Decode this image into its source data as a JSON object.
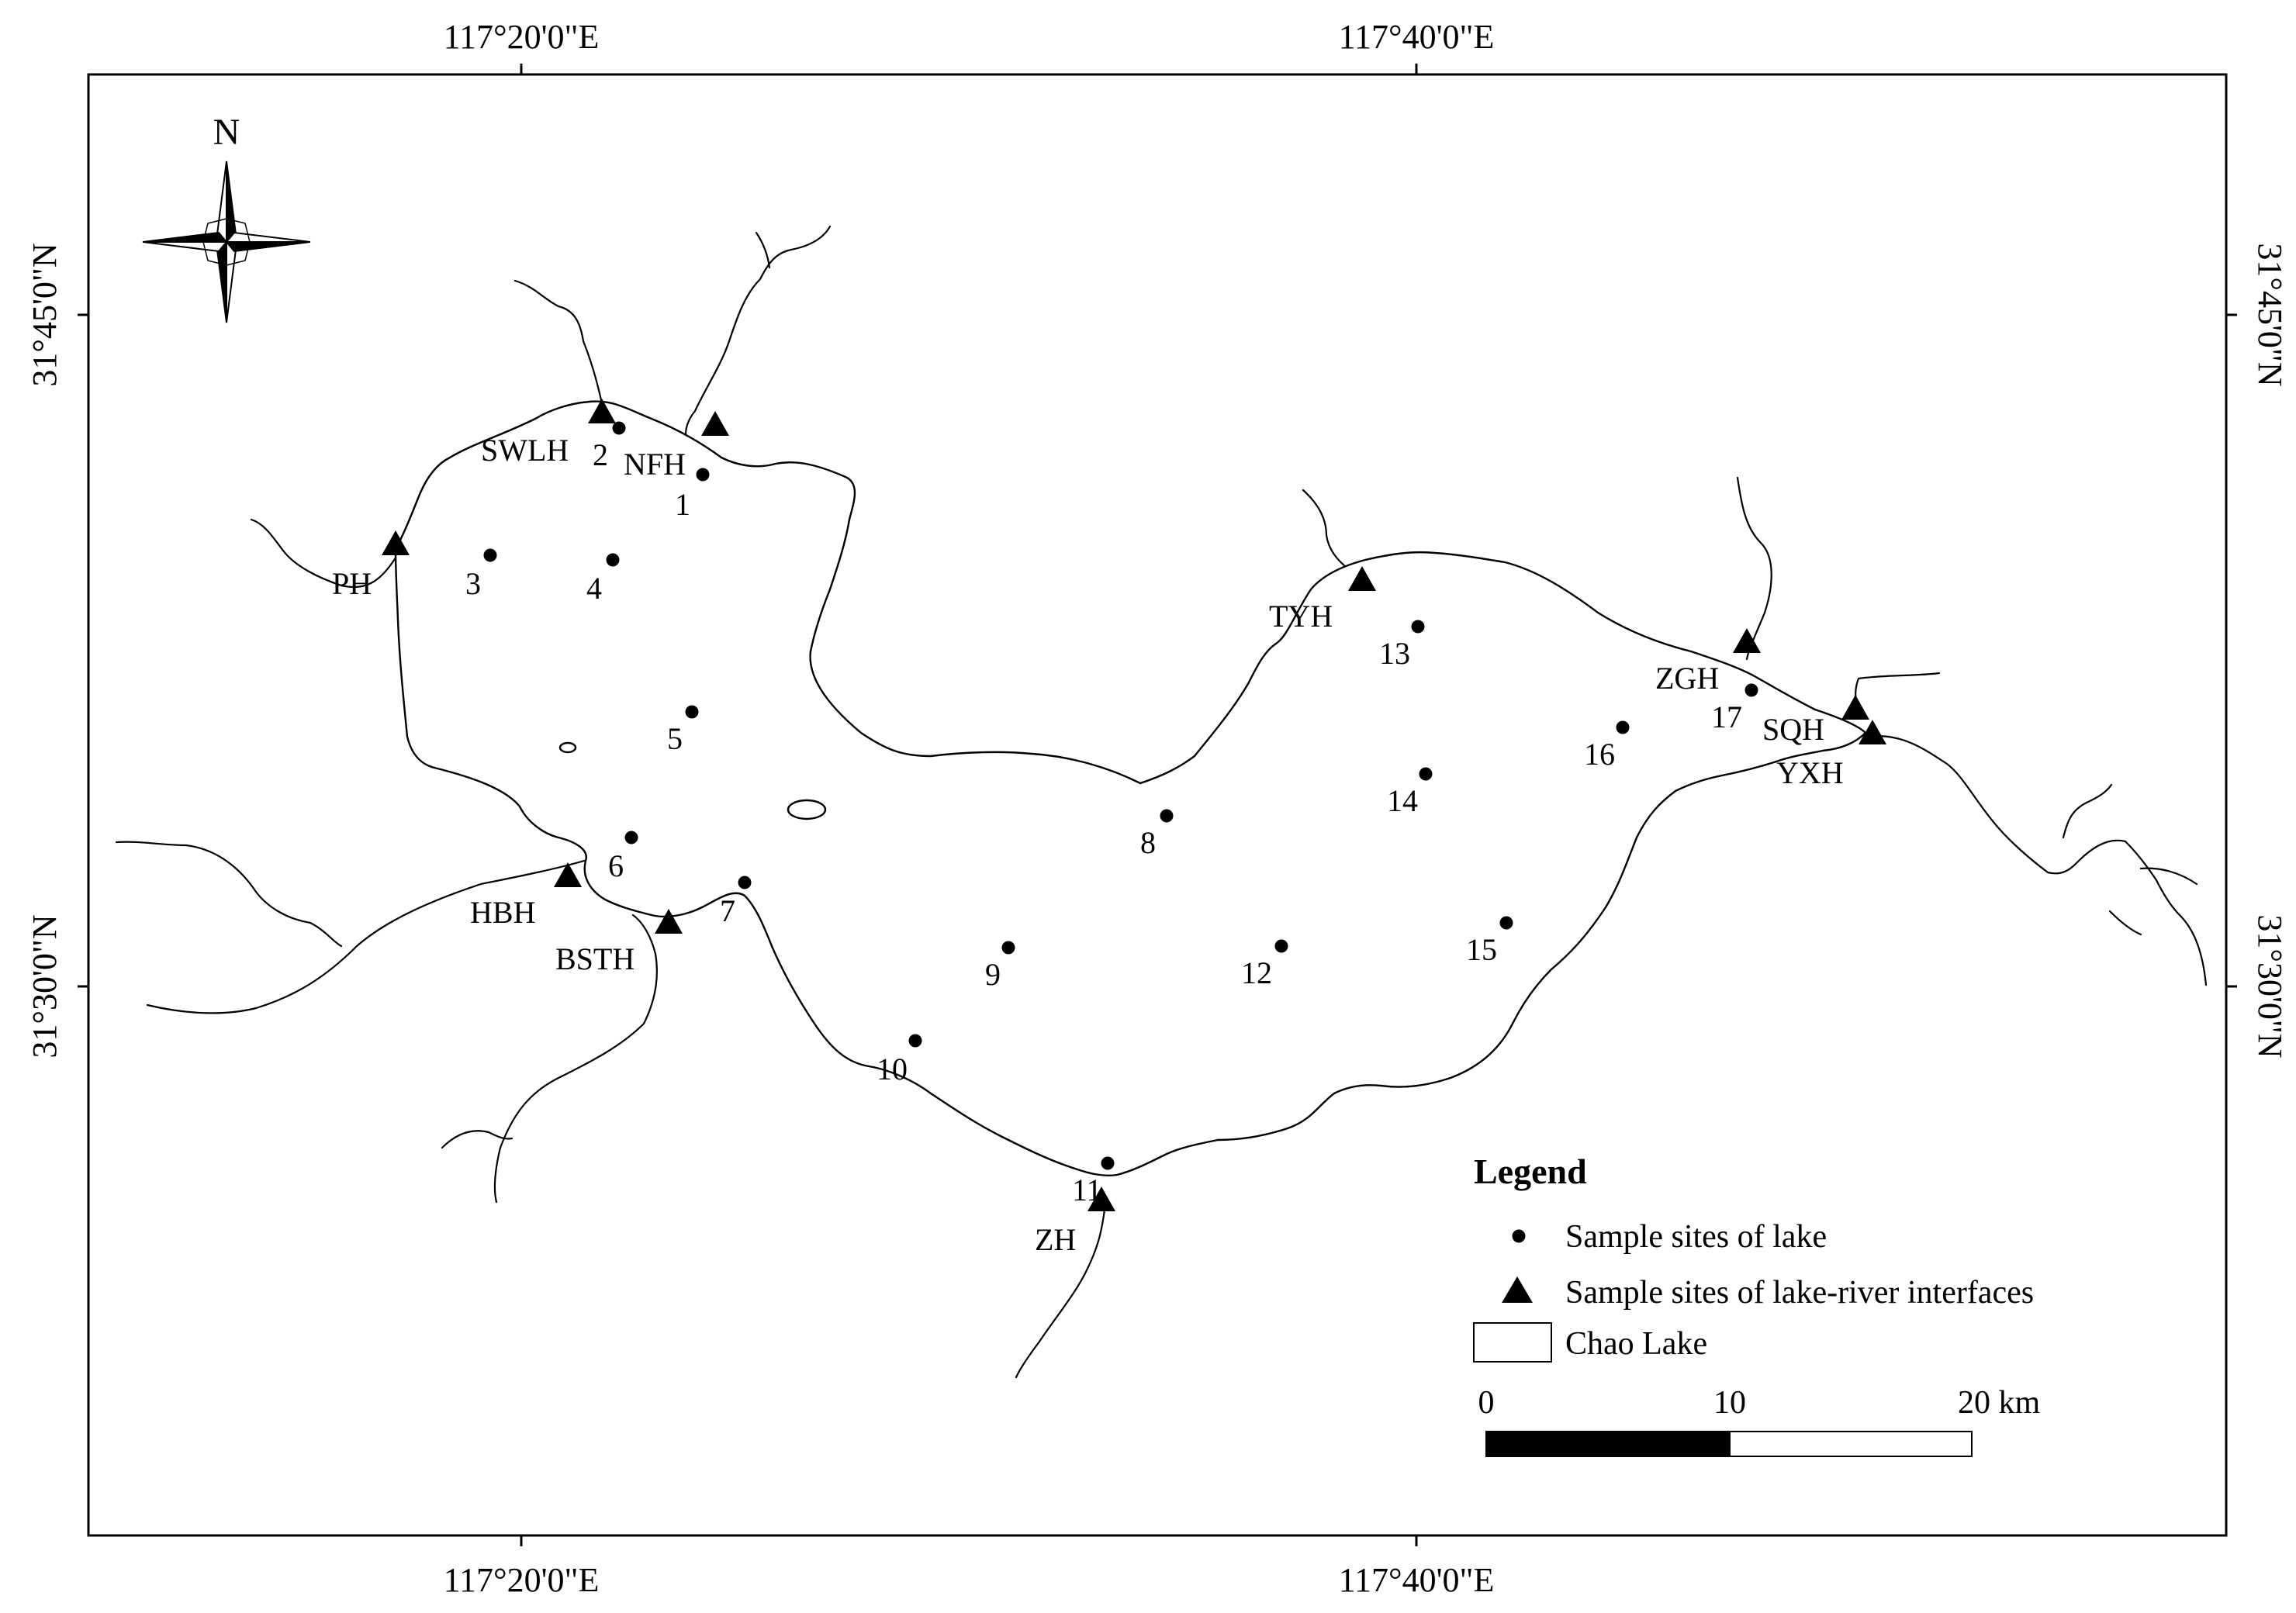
{
  "axes": {
    "top_ticks": [
      "117°20'0\"E",
      "117°40'0\"E"
    ],
    "bottom_ticks": [
      "117°20'0\"E",
      "117°40'0\"E"
    ],
    "left_ticks": [
      "31°45'0\"N",
      "31°30'0\"N"
    ],
    "right_ticks": [
      "31°45'0\"N",
      "31°30'0\"N"
    ]
  },
  "north_arrow": {
    "label": "N",
    "icon": "compass-rose-icon"
  },
  "lake_sites": [
    {
      "label": "1"
    },
    {
      "label": "2"
    },
    {
      "label": "3"
    },
    {
      "label": "4"
    },
    {
      "label": "5"
    },
    {
      "label": "6"
    },
    {
      "label": "7"
    },
    {
      "label": "8"
    },
    {
      "label": "9"
    },
    {
      "label": "10"
    },
    {
      "label": "11"
    },
    {
      "label": "12"
    },
    {
      "label": "13"
    },
    {
      "label": "14"
    },
    {
      "label": "15"
    },
    {
      "label": "16"
    },
    {
      "label": "17"
    }
  ],
  "interface_sites": [
    {
      "label": "SWLH"
    },
    {
      "label": "NFH"
    },
    {
      "label": "PH"
    },
    {
      "label": "TYH"
    },
    {
      "label": "ZGH"
    },
    {
      "label": "SQH"
    },
    {
      "label": "YXH"
    },
    {
      "label": "HBH"
    },
    {
      "label": "BSTH"
    },
    {
      "label": "ZH"
    }
  ],
  "legend": {
    "title": "Legend",
    "items": [
      {
        "symbol": "dot",
        "label": "Sample sites of lake"
      },
      {
        "symbol": "triangle",
        "label": "Sample sites of lake-river interfaces"
      },
      {
        "symbol": "rect",
        "label": "Chao Lake"
      }
    ]
  },
  "scale_bar": {
    "ticks": [
      "0",
      "10",
      "20 km"
    ]
  },
  "colors": {
    "ink": "#000000",
    "background": "#ffffff"
  }
}
